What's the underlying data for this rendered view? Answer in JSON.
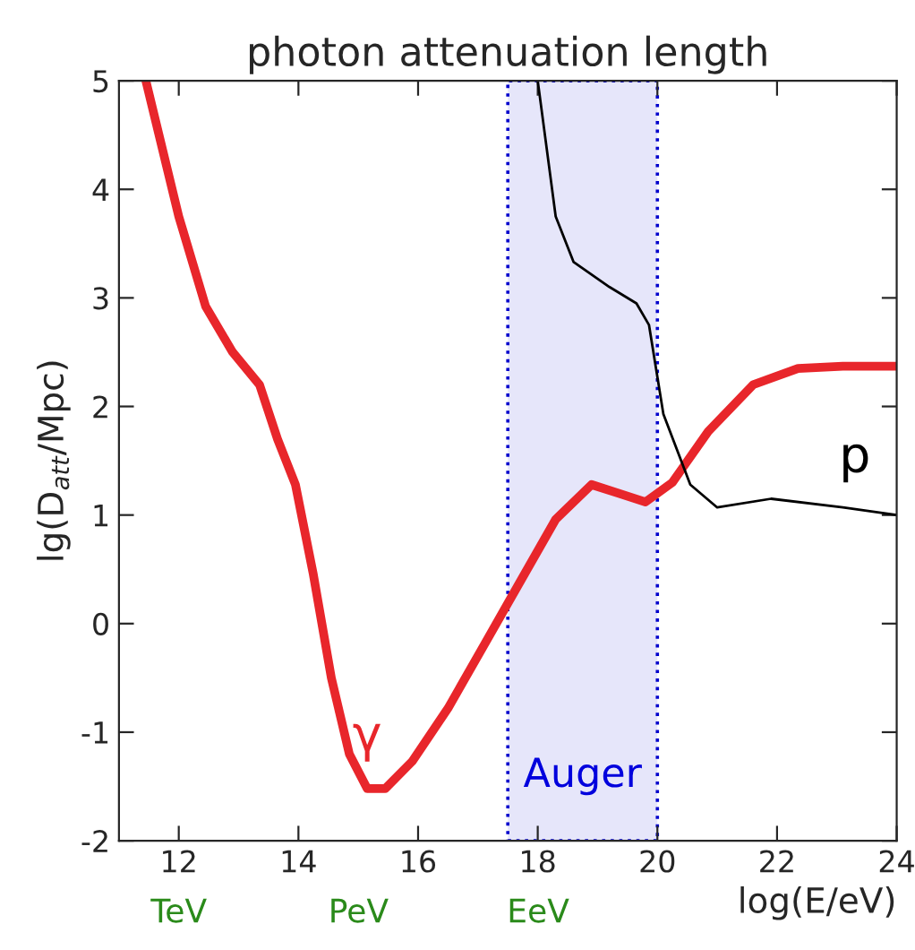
{
  "chart_data": {
    "type": "line",
    "title": "photon attenuation length",
    "xlabel": "log(E/eV)",
    "ylabel": "lg(D$_{att}$/Mpc)",
    "xlim": [
      11,
      24
    ],
    "xticks": [
      12,
      14,
      16,
      18,
      20,
      22,
      24
    ],
    "ylim": [
      -2,
      5
    ],
    "yticks": [
      -2,
      -1,
      0,
      1,
      2,
      3,
      4,
      5
    ],
    "annotations": [
      "TeV",
      "PeV",
      "EeV"
    ],
    "grid": false,
    "marker": "none",
    "line_style": "solid",
    "bands": [
      {
        "axis": "x",
        "from": 17.5,
        "to": 20,
        "label": "Auger",
        "color": "#e6e6fa"
      }
    ],
    "series": [
      {
        "name": "γ",
        "color": "#e8262b",
        "x": [
          11.45,
          12,
          12.45,
          12.9,
          13.35,
          13.65,
          13.95,
          14.25,
          14.55,
          14.85,
          15.15,
          15.45,
          15.9,
          16.5,
          17.1,
          17.7,
          18.3,
          18.9,
          19.35,
          19.8,
          20.25,
          20.85,
          21.6,
          22.35,
          23.1,
          24
        ],
        "values": [
          5,
          3.75,
          2.92,
          2.5,
          2.2,
          1.7,
          1.28,
          0.45,
          -0.5,
          -1.2,
          -1.52,
          -1.52,
          -1.27,
          -0.78,
          -0.2,
          0.38,
          0.96,
          1.28,
          1.2,
          1.12,
          1.3,
          1.77,
          2.2,
          2.35,
          2.37,
          2.37
        ]
      },
      {
        "name": "p",
        "color": "#000000",
        "x": [
          18.0,
          18.3,
          18.6,
          19.2,
          19.65,
          19.86,
          20.1,
          20.55,
          21,
          21.9,
          23.1,
          24
        ],
        "values": [
          5,
          3.75,
          3.33,
          3.1,
          2.95,
          2.75,
          1.93,
          1.28,
          1.07,
          1.15,
          1.07,
          1.0
        ]
      }
    ]
  }
}
